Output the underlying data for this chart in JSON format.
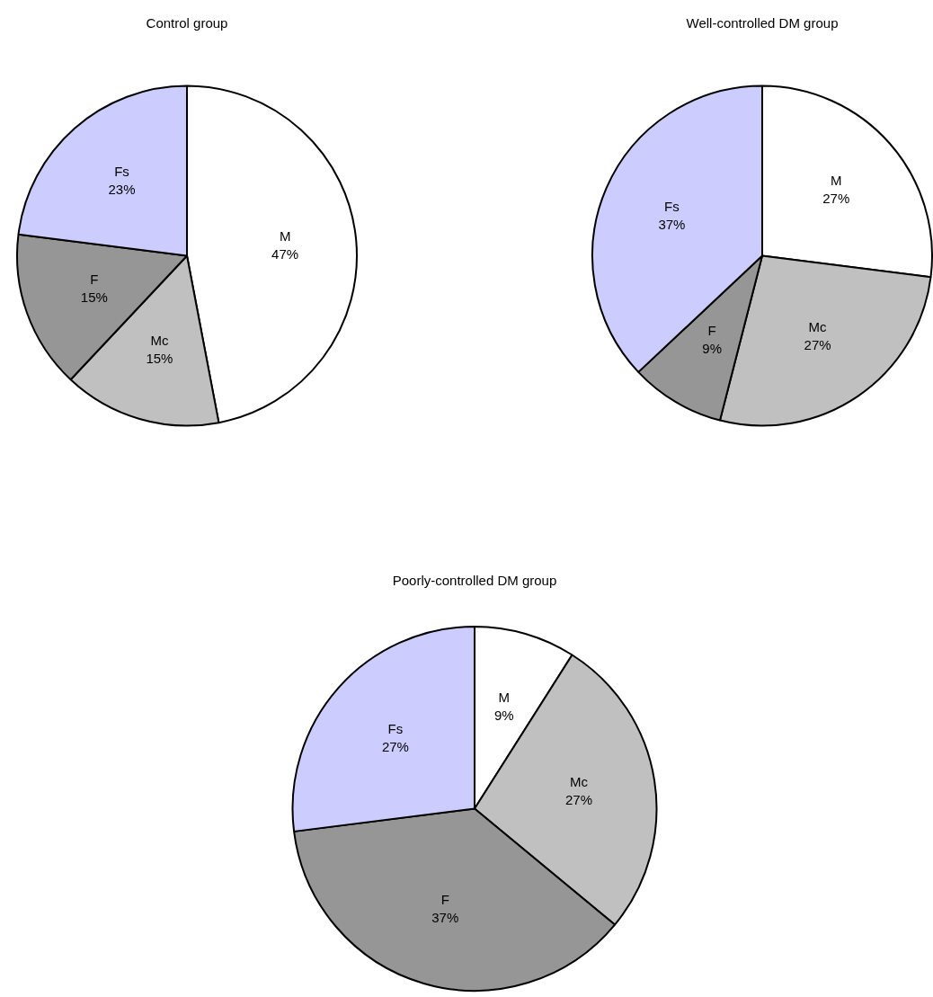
{
  "chart_data": [
    {
      "type": "pie",
      "title": "Control group",
      "categories": [
        "M",
        "Mc",
        "F",
        "Fs"
      ],
      "values": [
        47,
        15,
        15,
        23
      ],
      "value_labels": [
        "47%",
        "15%",
        "15%",
        "23%"
      ],
      "colors": [
        "#ffffff",
        "#c0c0c0",
        "#969696",
        "#ccccff"
      ],
      "legend": false
    },
    {
      "type": "pie",
      "title": "Well-controlled DM group",
      "categories": [
        "M",
        "Mc",
        "F",
        "Fs"
      ],
      "values": [
        27,
        27,
        9,
        37
      ],
      "value_labels": [
        "27%",
        "27%",
        "9%",
        "37%"
      ],
      "colors": [
        "#ffffff",
        "#c0c0c0",
        "#969696",
        "#ccccff"
      ],
      "legend": false
    },
    {
      "type": "pie",
      "title": "Poorly-controlled DM group",
      "categories": [
        "M",
        "Mc",
        "F",
        "Fs"
      ],
      "values": [
        9,
        27,
        37,
        27
      ],
      "value_labels": [
        "9%",
        "27%",
        "37%",
        "27%"
      ],
      "colors": [
        "#ffffff",
        "#c0c0c0",
        "#969696",
        "#ccccff"
      ],
      "legend": false
    }
  ]
}
